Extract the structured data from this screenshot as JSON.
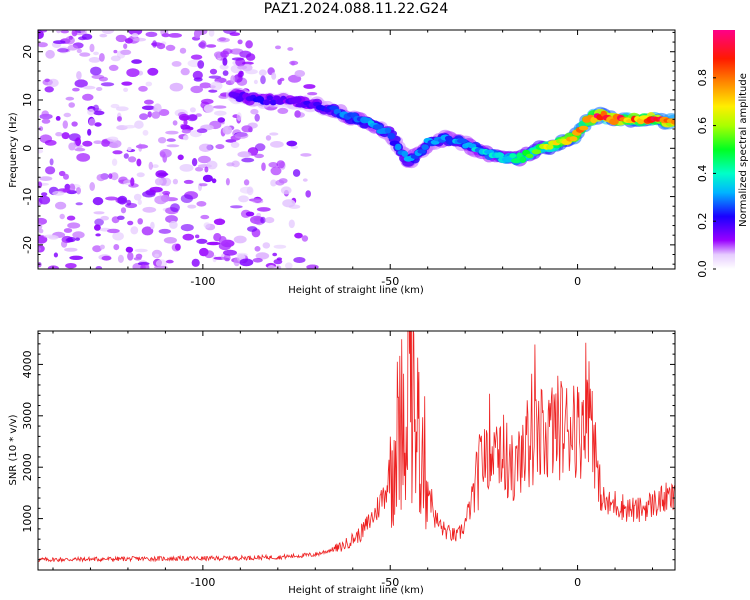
{
  "title": "PAZ1.2024.088.11.22.G24",
  "chart_data": [
    {
      "type": "heatmap",
      "xlabel": "Height of straight line (km)",
      "ylabel": "Frequency (Hz)",
      "xlim": [
        -144,
        26
      ],
      "ylim": [
        -25,
        24.5
      ],
      "x_ticks": [
        -100,
        -50,
        0
      ],
      "x_tick_labels": [
        "-100",
        "-50",
        "0"
      ],
      "y_ticks": [
        -20,
        -10,
        0,
        10,
        20
      ],
      "y_tick_labels": [
        "-20",
        "-10",
        "0",
        "10",
        "20"
      ],
      "colorbar": {
        "label": "Normalized spectral amplitude",
        "range": [
          0,
          1
        ],
        "ticks": [
          0,
          0.2,
          0.4,
          0.6,
          0.8
        ],
        "tick_labels": [
          "0.0",
          "0.2",
          "0.4",
          "0.6",
          "0.8"
        ],
        "colormap": "gist_rainbow_r"
      },
      "ridge": {
        "x": [
          -92,
          -85,
          -78,
          -70,
          -62,
          -55,
          -50,
          -45,
          -40,
          -35,
          -30,
          -25,
          -20,
          -15,
          -10,
          -5,
          0,
          3,
          6,
          10,
          15,
          20,
          26
        ],
        "frequency": [
          11,
          10,
          10,
          9,
          7,
          5,
          3,
          -3,
          1,
          2,
          1,
          -1,
          -2,
          -2,
          0,
          1,
          3,
          6,
          7,
          6,
          6,
          6,
          5.5
        ],
        "amplitude": [
          0.15,
          0.2,
          0.15,
          0.2,
          0.3,
          0.3,
          0.25,
          0.3,
          0.3,
          0.3,
          0.3,
          0.35,
          0.4,
          0.45,
          0.55,
          0.7,
          0.75,
          0.8,
          0.9,
          0.85,
          0.8,
          0.85,
          0.9
        ]
      },
      "noise_region_x": [
        -144,
        -68
      ],
      "noise_amplitude": [
        0.05,
        0.15
      ]
    },
    {
      "type": "line",
      "xlabel": "Height of straight line (km)",
      "ylabel": "SNR (10 * v/v)",
      "xlim": [
        -144,
        26
      ],
      "ylim": [
        0,
        4650
      ],
      "x_ticks": [
        -100,
        -50,
        0
      ],
      "x_tick_labels": [
        "-100",
        "-50",
        "0"
      ],
      "y_ticks": [
        1000,
        2000,
        3000,
        4000
      ],
      "y_tick_labels": [
        "1000",
        "2000",
        "3000",
        "4000"
      ],
      "grid": false,
      "series": [
        {
          "color": "#ee2222",
          "x": [
            -144,
            -130,
            -115,
            -100,
            -90,
            -80,
            -70,
            -63,
            -58,
            -54,
            -51,
            -49,
            -47,
            -45.5,
            -45,
            -44,
            -43,
            -41.5,
            -40,
            -38,
            -36,
            -34,
            -32,
            -30,
            -28,
            -26,
            -24,
            -22,
            -20,
            -18,
            -16.5,
            -15,
            -13,
            -11,
            -9,
            -7,
            -5,
            -3,
            -1,
            0.5,
            2,
            4,
            5.5,
            6.5,
            8,
            10,
            13,
            16,
            19,
            22,
            24,
            26
          ],
          "y": [
            200,
            210,
            220,
            225,
            235,
            250,
            300,
            450,
            700,
            1100,
            1600,
            2300,
            3000,
            3500,
            4650,
            3300,
            2800,
            2400,
            1700,
            1000,
            800,
            700,
            650,
            900,
            1400,
            2000,
            2500,
            2600,
            2300,
            2000,
            1900,
            2200,
            2500,
            2500,
            2600,
            2700,
            2800,
            2700,
            3000,
            2600,
            3400,
            3100,
            1600,
            1400,
            1250,
            1300,
            1200,
            1150,
            1250,
            1350,
            1400,
            1380
          ]
        }
      ]
    }
  ]
}
